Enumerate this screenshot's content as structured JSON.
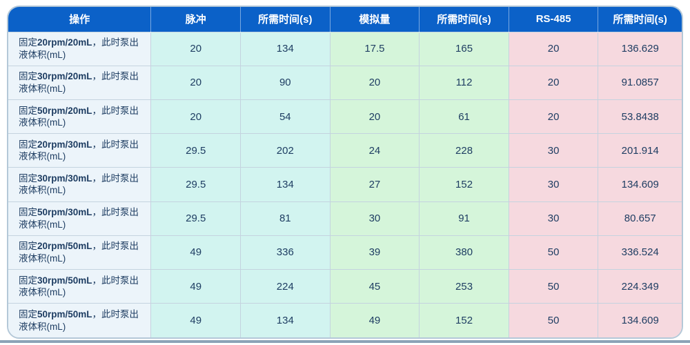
{
  "colors": {
    "header-bg": "#0b61c8",
    "op-bg": "#ecf4fa",
    "pulse-bg": "#d2f4f0",
    "analog-bg": "#d5f5da",
    "rs-bg": "#f6d9df",
    "text": "#1e3d62",
    "grid": "#c4d3df",
    "card-border": "#b4c8d8",
    "divider": "#8ba3b7"
  },
  "table": {
    "headers": [
      "操作",
      "脉冲",
      "所需时间(s)",
      "模拟量",
      "所需时间(s)",
      "RS-485",
      "所需时间(s)"
    ],
    "rows": [
      {
        "op_pre": "固定",
        "op_bold": "20rpm/20mL",
        "op_post": "，此时泵出液体积(mL)",
        "cells": [
          "20",
          "134",
          "17.5",
          "165",
          "20",
          "136.629"
        ]
      },
      {
        "op_pre": "固定",
        "op_bold": "30rpm/20mL",
        "op_post": "，此时泵出液体积(mL)",
        "cells": [
          "20",
          "90",
          "20",
          "112",
          "20",
          "91.0857"
        ]
      },
      {
        "op_pre": "固定",
        "op_bold": "50rpm/20mL",
        "op_post": "，此时泵出液体积(mL)",
        "cells": [
          "20",
          "54",
          "20",
          "61",
          "20",
          "53.8438"
        ]
      },
      {
        "op_pre": "固定",
        "op_bold": "20rpm/30mL",
        "op_post": "，此时泵出液体积(mL)",
        "cells": [
          "29.5",
          "202",
          "24",
          "228",
          "30",
          "201.914"
        ]
      },
      {
        "op_pre": "固定",
        "op_bold": "30rpm/30mL",
        "op_post": "，此时泵出液体积(mL)",
        "cells": [
          "29.5",
          "134",
          "27",
          "152",
          "30",
          "134.609"
        ]
      },
      {
        "op_pre": "固定",
        "op_bold": "50rpm/30mL",
        "op_post": "，此时泵出液体积(mL)",
        "cells": [
          "29.5",
          "81",
          "30",
          "91",
          "30",
          "80.657"
        ]
      },
      {
        "op_pre": "固定",
        "op_bold": "20rpm/50mL",
        "op_post": "，此时泵出液体积(mL)",
        "cells": [
          "49",
          "336",
          "39",
          "380",
          "50",
          "336.524"
        ]
      },
      {
        "op_pre": "固定",
        "op_bold": "30rpm/50mL",
        "op_post": "，此时泵出液体积(mL)",
        "cells": [
          "49",
          "224",
          "45",
          "253",
          "50",
          "224.349"
        ]
      },
      {
        "op_pre": "固定",
        "op_bold": "50rpm/50mL",
        "op_post": "，此时泵出液体积(mL)",
        "cells": [
          "49",
          "134",
          "49",
          "152",
          "50",
          "134.609"
        ]
      }
    ]
  }
}
